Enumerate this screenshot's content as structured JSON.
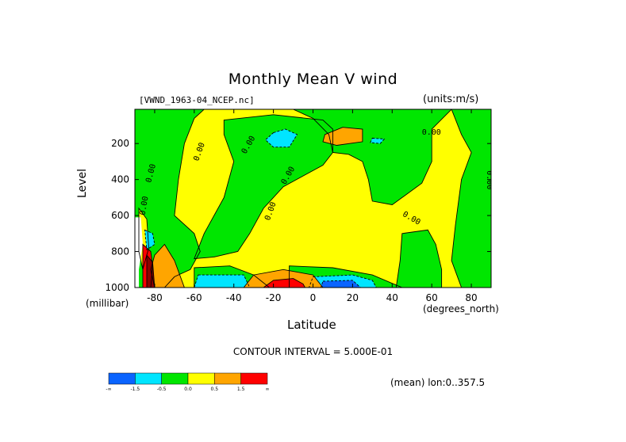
{
  "page": {
    "title": "Monthly Mean V wind",
    "source_label": "[VWND_1963-04_NCEP.nc]",
    "units_label": "(units:m/s)",
    "contour_interval": "CONTOUR INTERVAL = 5.000E-01",
    "mean_label": "(mean) lon:0..357.5"
  },
  "chart_data": {
    "type": "heatmap",
    "title": "Monthly Mean V wind",
    "xlabel": "Latitude",
    "x_units": "(degrees_north)",
    "ylabel": "Level",
    "y_units": "(millibar)",
    "xlim": [
      -90,
      90
    ],
    "ylim": [
      1000,
      10
    ],
    "x_ticks": [
      -80,
      -60,
      -40,
      -20,
      0,
      20,
      40,
      60,
      80
    ],
    "y_ticks": [
      200,
      400,
      600,
      800,
      1000
    ],
    "contour_labels": [
      "0.00"
    ],
    "colorbar": {
      "colors": [
        "#0a64ff",
        "#00e5ff",
        "#00e600",
        "#ffff00",
        "#ffa500",
        "#ff0000"
      ],
      "labels": [
        "-∞",
        "-1.5",
        "-0.5",
        "0.0",
        "0.5",
        "1.5",
        "∞"
      ]
    },
    "fields": {
      "background": "#ffff00",
      "regions": [
        {
          "color": "#00e600",
          "points": [
            [
              -90,
              10
            ],
            [
              -55,
              10
            ],
            [
              -60,
              60
            ],
            [
              -65,
              200
            ],
            [
              -68,
              400
            ],
            [
              -70,
              600
            ],
            [
              -60,
              700
            ],
            [
              -57,
              800
            ],
            [
              -62,
              900
            ],
            [
              -70,
              940
            ],
            [
              -75,
              1000
            ],
            [
              -90,
              1000
            ]
          ]
        },
        {
          "color": "#00e600",
          "points": [
            [
              -45,
              70
            ],
            [
              -20,
              40
            ],
            [
              5,
              70
            ],
            [
              10,
              120
            ],
            [
              10,
              250
            ],
            [
              5,
              320
            ],
            [
              -5,
              380
            ],
            [
              -15,
              440
            ],
            [
              -25,
              560
            ],
            [
              -32,
              700
            ],
            [
              -38,
              800
            ],
            [
              -50,
              830
            ],
            [
              -60,
              840
            ],
            [
              -55,
              700
            ],
            [
              -45,
              500
            ],
            [
              -40,
              300
            ],
            [
              -45,
              150
            ]
          ]
        },
        {
          "color": "#00e600",
          "points": [
            [
              -10,
              10
            ],
            [
              70,
              10
            ],
            [
              60,
              120
            ],
            [
              60,
              300
            ],
            [
              55,
              420
            ],
            [
              45,
              500
            ],
            [
              40,
              540
            ],
            [
              30,
              520
            ],
            [
              28,
              400
            ],
            [
              25,
              300
            ],
            [
              18,
              260
            ],
            [
              10,
              250
            ],
            [
              8,
              150
            ],
            [
              0,
              60
            ]
          ]
        },
        {
          "color": "#00e600",
          "points": [
            [
              70,
              10
            ],
            [
              90,
              10
            ],
            [
              90,
              1000
            ],
            [
              75,
              1000
            ],
            [
              70,
              850
            ],
            [
              72,
              650
            ],
            [
              75,
              400
            ],
            [
              80,
              250
            ],
            [
              75,
              150
            ]
          ]
        },
        {
          "color": "#00e600",
          "points": [
            [
              45,
              700
            ],
            [
              58,
              680
            ],
            [
              62,
              760
            ],
            [
              65,
              900
            ],
            [
              65,
              1000
            ],
            [
              42,
              1000
            ],
            [
              44,
              850
            ]
          ]
        },
        {
          "color": "#00e600",
          "points": [
            [
              -12,
              880
            ],
            [
              10,
              890
            ],
            [
              30,
              930
            ],
            [
              45,
              1000
            ],
            [
              -12,
              1000
            ]
          ]
        },
        {
          "color": "#00e600",
          "points": [
            [
              -60,
              890
            ],
            [
              -42,
              880
            ],
            [
              -30,
              930
            ],
            [
              -22,
              1000
            ],
            [
              -60,
              1000
            ]
          ]
        },
        {
          "color": "#ffff00",
          "points": [
            [
              -88,
              560
            ],
            [
              -84,
              620
            ],
            [
              -83,
              780
            ],
            [
              -86,
              900
            ],
            [
              -88,
              800
            ]
          ]
        },
        {
          "color": "#00e5ff",
          "points": [
            [
              -20,
              140
            ],
            [
              -14,
              120
            ],
            [
              -8,
              150
            ],
            [
              -12,
              220
            ],
            [
              -20,
              220
            ],
            [
              -24,
              180
            ]
          ]
        },
        {
          "color": "#00e5ff",
          "points": [
            [
              30,
              170
            ],
            [
              36,
              175
            ],
            [
              34,
              200
            ],
            [
              29,
              195
            ]
          ]
        },
        {
          "color": "#00e5ff",
          "points": [
            [
              -58,
              930
            ],
            [
              -35,
              930
            ],
            [
              -32,
              1000
            ],
            [
              -60,
              1000
            ]
          ]
        },
        {
          "color": "#00e5ff",
          "points": [
            [
              -85,
              680
            ],
            [
              -81,
              700
            ],
            [
              -80,
              760
            ],
            [
              -84,
              790
            ]
          ]
        },
        {
          "color": "#00e5ff",
          "points": [
            [
              0,
              940
            ],
            [
              20,
              930
            ],
            [
              30,
              960
            ],
            [
              32,
              1000
            ],
            [
              -2,
              1000
            ]
          ]
        },
        {
          "color": "#0a64ff",
          "points": [
            [
              5,
              965
            ],
            [
              20,
              960
            ],
            [
              24,
              1000
            ],
            [
              4,
              1000
            ]
          ]
        },
        {
          "color": "#ffa500",
          "points": [
            [
              6,
              150
            ],
            [
              15,
              110
            ],
            [
              25,
              120
            ],
            [
              25,
              190
            ],
            [
              12,
              210
            ],
            [
              5,
              190
            ]
          ]
        },
        {
          "color": "#ffa500",
          "points": [
            [
              -35,
              1000
            ],
            [
              -30,
              930
            ],
            [
              -15,
              900
            ],
            [
              0,
              930
            ],
            [
              5,
              1000
            ]
          ]
        },
        {
          "color": "#ffa500",
          "points": [
            [
              -80,
              1000
            ],
            [
              -82,
              900
            ],
            [
              -80,
              820
            ],
            [
              -75,
              760
            ],
            [
              -70,
              850
            ],
            [
              -65,
              1000
            ]
          ]
        },
        {
          "color": "#ff0000",
          "points": [
            [
              -25,
              1000
            ],
            [
              -20,
              960
            ],
            [
              -10,
              950
            ],
            [
              -5,
              980
            ],
            [
              -4,
              1000
            ]
          ]
        },
        {
          "color": "#ff0000",
          "points": [
            [
              -86,
              760
            ],
            [
              -82,
              800
            ],
            [
              -81,
              880
            ],
            [
              -82,
              1000
            ],
            [
              -86,
              1000
            ]
          ]
        },
        {
          "color": "#8b0000",
          "points": [
            [
              -84,
              820
            ],
            [
              -81,
              860
            ],
            [
              -80,
              1000
            ],
            [
              -84,
              1000
            ]
          ]
        },
        {
          "color": "#ffffff",
          "points": [
            [
              -90,
              610
            ],
            [
              -87,
              610
            ],
            [
              -86,
              760
            ],
            [
              -88,
              900
            ],
            [
              -88,
              1000
            ],
            [
              -90,
              1000
            ]
          ]
        }
      ]
    }
  }
}
